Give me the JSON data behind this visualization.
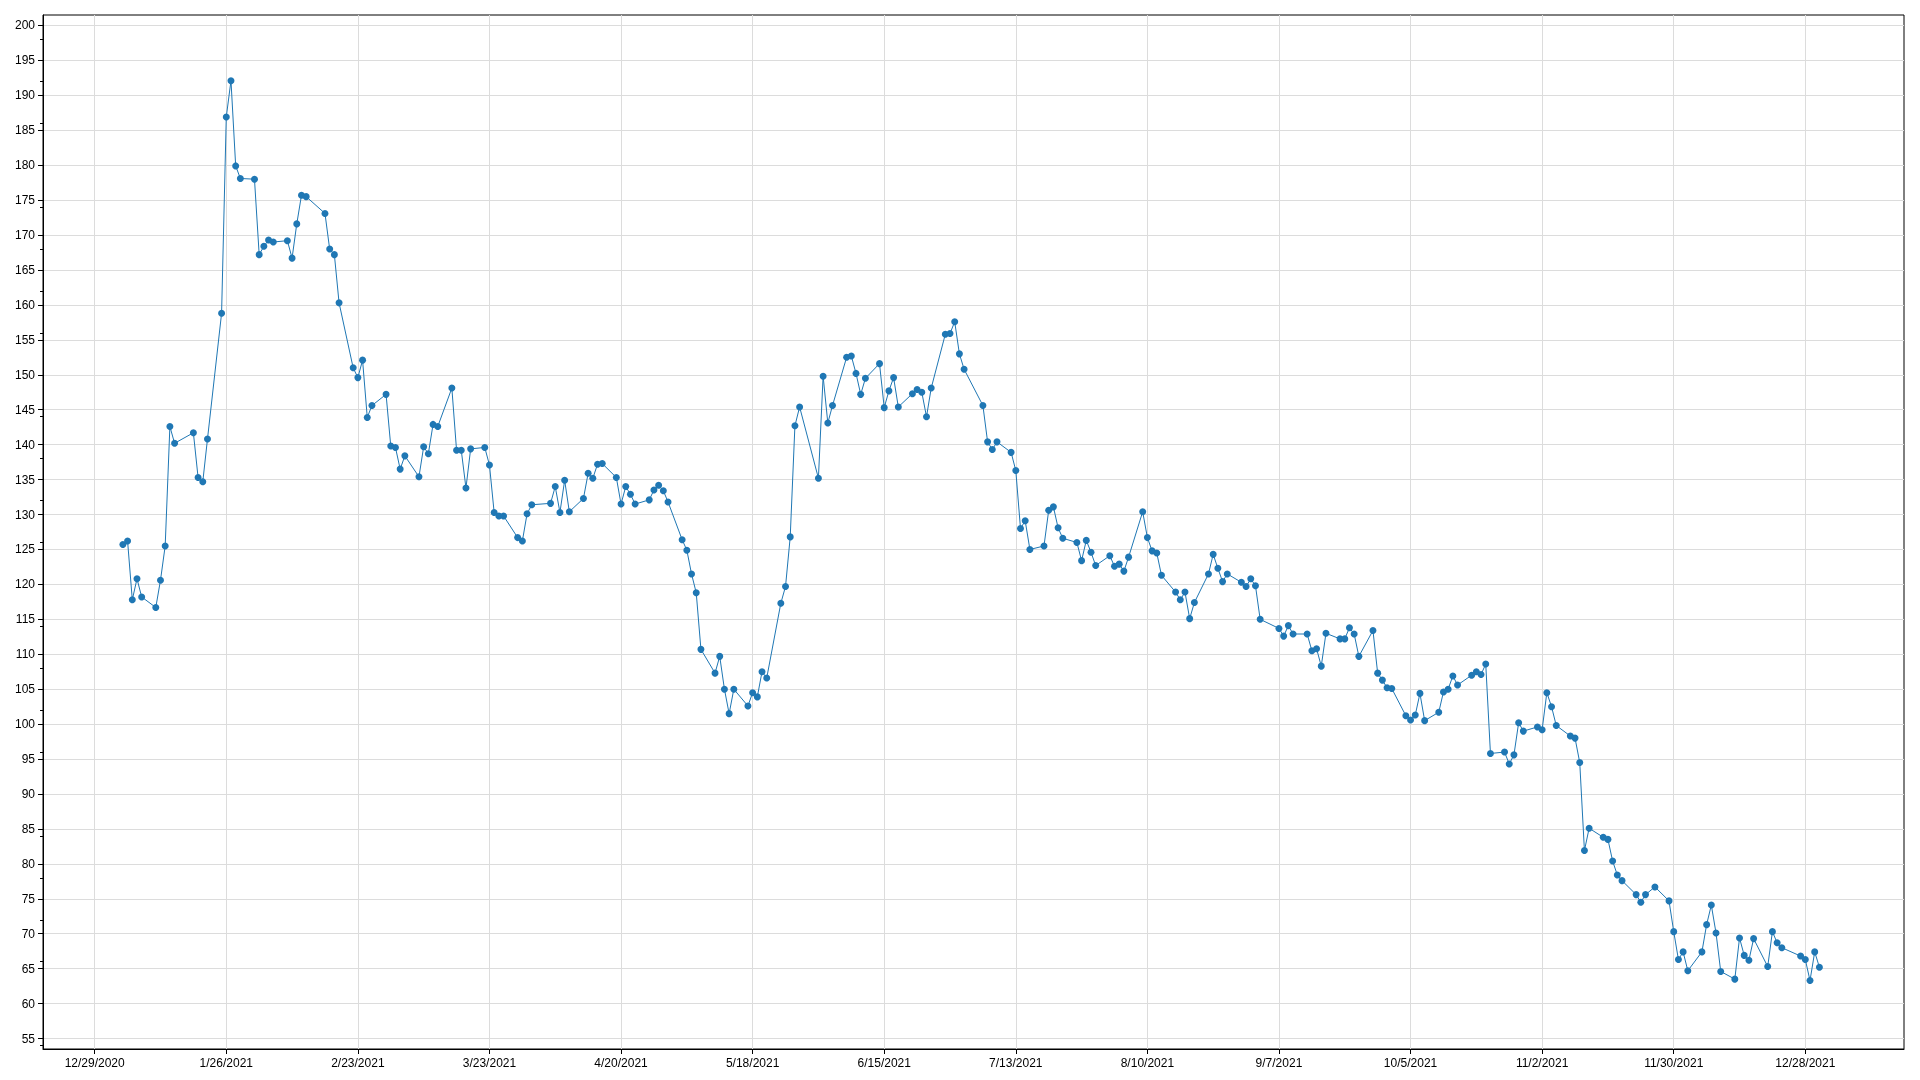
{
  "chart_data": {
    "type": "line",
    "color": "#1f77b4",
    "marker": "circle",
    "line_style": "solid",
    "grid": true,
    "xlim": [
      "2020-12-18",
      "2022-01-18"
    ],
    "xticks": [
      {
        "value": "2020-12-29",
        "label": "12/29/2020"
      },
      {
        "value": "2021-01-26",
        "label": "1/26/2021"
      },
      {
        "value": "2021-02-23",
        "label": "2/23/2021"
      },
      {
        "value": "2021-03-23",
        "label": "3/23/2021"
      },
      {
        "value": "2021-04-20",
        "label": "4/20/2021"
      },
      {
        "value": "2021-05-18",
        "label": "5/18/2021"
      },
      {
        "value": "2021-06-15",
        "label": "6/15/2021"
      },
      {
        "value": "2021-07-13",
        "label": "7/13/2021"
      },
      {
        "value": "2021-08-10",
        "label": "8/10/2021"
      },
      {
        "value": "2021-09-07",
        "label": "9/7/2021"
      },
      {
        "value": "2021-10-05",
        "label": "10/5/2021"
      },
      {
        "value": "2021-11-02",
        "label": "11/2/2021"
      },
      {
        "value": "2021-11-30",
        "label": "11/30/2021"
      },
      {
        "value": "2021-12-28",
        "label": "12/28/2021"
      }
    ],
    "ylim": [
      53.5,
      201.5
    ],
    "yticks": [
      55,
      60,
      65,
      70,
      75,
      80,
      85,
      90,
      95,
      100,
      105,
      110,
      115,
      120,
      125,
      130,
      135,
      140,
      145,
      150,
      155,
      160,
      165,
      170,
      175,
      180,
      185,
      190,
      195,
      200
    ],
    "x": [
      "2021-01-04",
      "2021-01-05",
      "2021-01-06",
      "2021-01-07",
      "2021-01-08",
      "2021-01-11",
      "2021-01-12",
      "2021-01-13",
      "2021-01-14",
      "2021-01-15",
      "2021-01-19",
      "2021-01-20",
      "2021-01-21",
      "2021-01-22",
      "2021-01-25",
      "2021-01-26",
      "2021-01-27",
      "2021-01-28",
      "2021-01-29",
      "2021-02-01",
      "2021-02-02",
      "2021-02-03",
      "2021-02-04",
      "2021-02-05",
      "2021-02-08",
      "2021-02-09",
      "2021-02-10",
      "2021-02-11",
      "2021-02-12",
      "2021-02-16",
      "2021-02-17",
      "2021-02-18",
      "2021-02-19",
      "2021-02-22",
      "2021-02-23",
      "2021-02-24",
      "2021-02-25",
      "2021-02-26",
      "2021-03-01",
      "2021-03-02",
      "2021-03-03",
      "2021-03-04",
      "2021-03-05",
      "2021-03-08",
      "2021-03-09",
      "2021-03-10",
      "2021-03-11",
      "2021-03-12",
      "2021-03-15",
      "2021-03-16",
      "2021-03-17",
      "2021-03-18",
      "2021-03-19",
      "2021-03-22",
      "2021-03-23",
      "2021-03-24",
      "2021-03-25",
      "2021-03-26",
      "2021-03-29",
      "2021-03-30",
      "2021-03-31",
      "2021-04-01",
      "2021-04-05",
      "2021-04-06",
      "2021-04-07",
      "2021-04-08",
      "2021-04-09",
      "2021-04-12",
      "2021-04-13",
      "2021-04-14",
      "2021-04-15",
      "2021-04-16",
      "2021-04-19",
      "2021-04-20",
      "2021-04-21",
      "2021-04-22",
      "2021-04-23",
      "2021-04-26",
      "2021-04-27",
      "2021-04-28",
      "2021-04-29",
      "2021-04-30",
      "2021-05-03",
      "2021-05-04",
      "2021-05-05",
      "2021-05-06",
      "2021-05-07",
      "2021-05-10",
      "2021-05-11",
      "2021-05-12",
      "2021-05-13",
      "2021-05-14",
      "2021-05-17",
      "2021-05-18",
      "2021-05-19",
      "2021-05-20",
      "2021-05-21",
      "2021-05-24",
      "2021-05-25",
      "2021-05-26",
      "2021-05-27",
      "2021-05-28",
      "2021-06-01",
      "2021-06-02",
      "2021-06-03",
      "2021-06-04",
      "2021-06-07",
      "2021-06-08",
      "2021-06-09",
      "2021-06-10",
      "2021-06-11",
      "2021-06-14",
      "2021-06-15",
      "2021-06-16",
      "2021-06-17",
      "2021-06-18",
      "2021-06-21",
      "2021-06-22",
      "2021-06-23",
      "2021-06-24",
      "2021-06-25",
      "2021-06-28",
      "2021-06-29",
      "2021-06-30",
      "2021-07-01",
      "2021-07-02",
      "2021-07-06",
      "2021-07-07",
      "2021-07-08",
      "2021-07-09",
      "2021-07-12",
      "2021-07-13",
      "2021-07-14",
      "2021-07-15",
      "2021-07-16",
      "2021-07-19",
      "2021-07-20",
      "2021-07-21",
      "2021-07-22",
      "2021-07-23",
      "2021-07-26",
      "2021-07-27",
      "2021-07-28",
      "2021-07-29",
      "2021-07-30",
      "2021-08-02",
      "2021-08-03",
      "2021-08-04",
      "2021-08-05",
      "2021-08-06",
      "2021-08-09",
      "2021-08-10",
      "2021-08-11",
      "2021-08-12",
      "2021-08-13",
      "2021-08-16",
      "2021-08-17",
      "2021-08-18",
      "2021-08-19",
      "2021-08-20",
      "2021-08-23",
      "2021-08-24",
      "2021-08-25",
      "2021-08-26",
      "2021-08-27",
      "2021-08-30",
      "2021-08-31",
      "2021-09-01",
      "2021-09-02",
      "2021-09-03",
      "2021-09-07",
      "2021-09-08",
      "2021-09-09",
      "2021-09-10",
      "2021-09-13",
      "2021-09-14",
      "2021-09-15",
      "2021-09-16",
      "2021-09-17",
      "2021-09-20",
      "2021-09-21",
      "2021-09-22",
      "2021-09-23",
      "2021-09-24",
      "2021-09-27",
      "2021-09-28",
      "2021-09-29",
      "2021-09-30",
      "2021-10-01",
      "2021-10-04",
      "2021-10-05",
      "2021-10-06",
      "2021-10-07",
      "2021-10-08",
      "2021-10-11",
      "2021-10-12",
      "2021-10-13",
      "2021-10-14",
      "2021-10-15",
      "2021-10-18",
      "2021-10-19",
      "2021-10-20",
      "2021-10-21",
      "2021-10-22",
      "2021-10-25",
      "2021-10-26",
      "2021-10-27",
      "2021-10-28",
      "2021-10-29",
      "2021-11-01",
      "2021-11-02",
      "2021-11-03",
      "2021-11-04",
      "2021-11-05",
      "2021-11-08",
      "2021-11-09",
      "2021-11-10",
      "2021-11-11",
      "2021-11-12",
      "2021-11-15",
      "2021-11-16",
      "2021-11-17",
      "2021-11-18",
      "2021-11-19",
      "2021-11-22",
      "2021-11-23",
      "2021-11-24",
      "2021-11-26",
      "2021-11-29",
      "2021-11-30",
      "2021-12-01",
      "2021-12-02",
      "2021-12-03",
      "2021-12-06",
      "2021-12-07",
      "2021-12-08",
      "2021-12-09",
      "2021-12-10",
      "2021-12-13",
      "2021-12-14",
      "2021-12-15",
      "2021-12-16",
      "2021-12-17",
      "2021-12-20",
      "2021-12-21",
      "2021-12-22",
      "2021-12-23",
      "2021-12-27",
      "2021-12-28",
      "2021-12-29",
      "2021-12-30",
      "2021-12-31"
    ],
    "values": [
      125.7,
      126.2,
      117.8,
      120.8,
      118.2,
      116.7,
      120.6,
      125.5,
      142.6,
      140.2,
      141.7,
      135.3,
      134.7,
      140.8,
      158.8,
      186.9,
      192.1,
      179.9,
      178.1,
      178.0,
      167.2,
      168.4,
      169.3,
      169.0,
      169.2,
      166.7,
      171.6,
      175.7,
      175.5,
      173.1,
      168.0,
      167.2,
      160.3,
      151.0,
      149.6,
      152.1,
      143.9,
      145.6,
      147.2,
      139.8,
      139.6,
      136.5,
      138.4,
      135.4,
      139.7,
      138.7,
      142.9,
      142.6,
      148.1,
      139.2,
      139.2,
      133.8,
      139.4,
      139.6,
      137.1,
      130.3,
      129.8,
      129.8,
      126.7,
      126.2,
      130.1,
      131.4,
      131.6,
      134.0,
      130.3,
      134.9,
      130.4,
      132.3,
      135.9,
      135.2,
      137.2,
      137.3,
      135.3,
      131.5,
      134.0,
      132.9,
      131.5,
      132.1,
      133.5,
      134.2,
      133.4,
      131.8,
      126.4,
      124.9,
      121.5,
      118.8,
      110.7,
      107.3,
      109.7,
      105.0,
      101.5,
      105.0,
      102.6,
      104.5,
      103.9,
      107.5,
      106.6,
      117.3,
      119.7,
      126.8,
      142.7,
      145.4,
      135.2,
      149.8,
      143.1,
      145.6,
      152.5,
      152.7,
      150.2,
      147.2,
      149.5,
      151.6,
      145.3,
      147.7,
      149.6,
      145.4,
      147.3,
      147.9,
      147.5,
      144.0,
      148.1,
      155.8,
      155.9,
      157.6,
      153.0,
      150.8,
      145.6,
      140.4,
      139.3,
      140.4,
      138.9,
      136.3,
      128.0,
      129.1,
      125.0,
      125.5,
      130.6,
      131.1,
      128.1,
      126.6,
      126.0,
      123.4,
      126.3,
      124.6,
      122.7,
      124.1,
      122.6,
      122.9,
      121.9,
      123.9,
      130.4,
      126.7,
      124.8,
      124.5,
      121.3,
      118.9,
      117.8,
      118.9,
      115.1,
      117.4,
      121.5,
      124.3,
      122.3,
      120.4,
      121.5,
      120.3,
      119.7,
      120.8,
      119.8,
      115.0,
      113.7,
      112.6,
      114.1,
      112.9,
      112.9,
      110.5,
      110.8,
      108.3,
      113.0,
      112.2,
      112.2,
      113.8,
      112.9,
      109.7,
      113.4,
      107.3,
      106.3,
      105.2,
      105.1,
      101.2,
      100.6,
      101.3,
      104.4,
      100.5,
      101.7,
      104.6,
      105.0,
      106.9,
      105.6,
      107.0,
      107.5,
      107.1,
      108.6,
      95.8,
      96.0,
      94.3,
      95.6,
      100.2,
      99.0,
      99.6,
      99.2,
      104.5,
      102.5,
      99.8,
      98.3,
      98.0,
      94.5,
      81.9,
      85.1,
      83.8,
      83.5,
      80.4,
      78.4,
      77.6,
      75.6,
      74.5,
      75.6,
      76.7,
      74.7,
      70.3,
      66.3,
      67.4,
      64.7,
      67.4,
      71.3,
      74.1,
      70.1,
      64.6,
      63.5,
      69.4,
      66.9,
      66.2,
      69.3,
      65.3,
      70.3,
      68.7,
      68.0,
      66.8,
      66.3,
      63.3,
      67.4,
      65.2
    ]
  }
}
